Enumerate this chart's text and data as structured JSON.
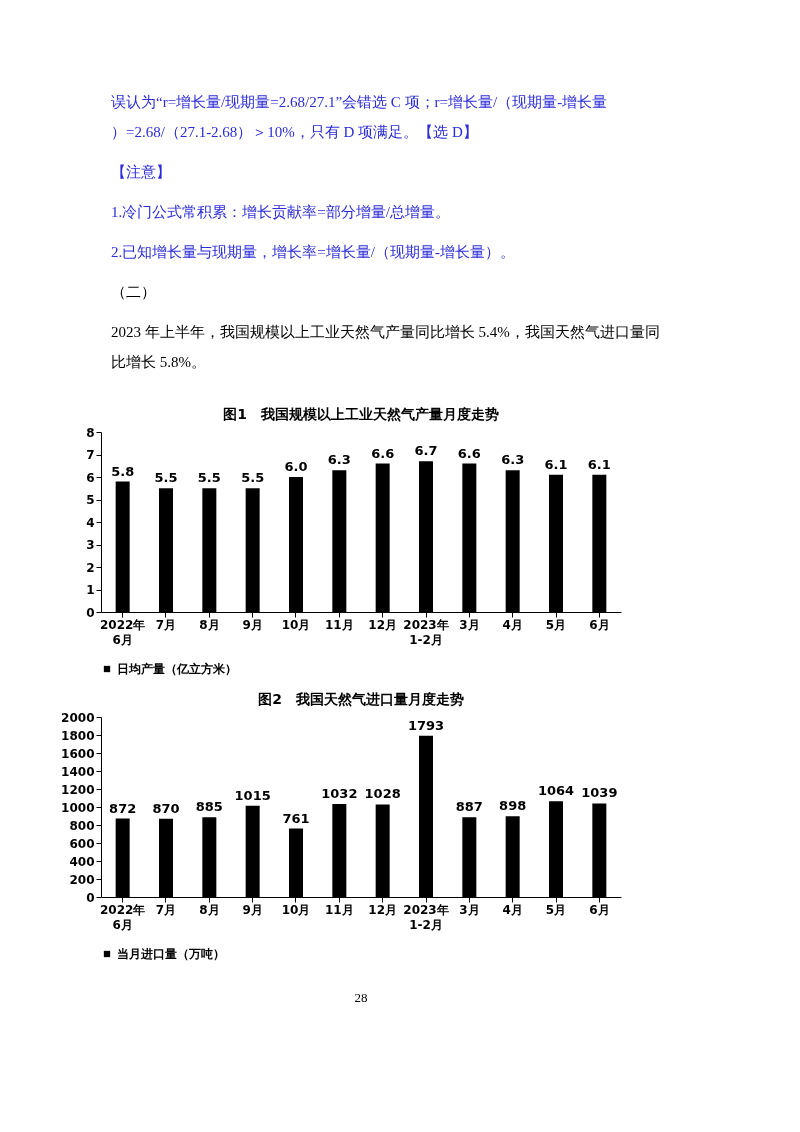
{
  "chart_data": [
    {
      "type": "bar",
      "title": "图1　我国规模以上工业天然气产量月度走势",
      "annotations": [
        "误认为“r=增长量/现期量=2.68/27.1”会错选 C 项；r=增长量/（现期量-增长量）=2.68/（27.1-2.68）＞10%，只有 D 项满足。【选 D】",
        "【注意】",
        "1.冷门公式常积累：增长贡献率=部分增量/总增量。",
        "2.已知增长量与现期量，增长率=增长量/（现期量-增长量）。",
        "（二）",
        "2023 年上半年，我国规模以上工业天然气产量同比增长 5.4%，我国天然气进口量同比增长 5.8%。"
      ],
      "categories": [
        "2022年\n6月",
        "7月",
        "8月",
        "9月",
        "10月",
        "11月",
        "12月",
        "2023年\n1-2月",
        "3月",
        "4月",
        "5月",
        "6月"
      ],
      "series": [
        {
          "name": "日均产量（亿立方米）",
          "color": "#000000",
          "values": [
            5.8,
            5.5,
            5.5,
            5.5,
            6.0,
            6.3,
            6.6,
            6.7,
            6.6,
            6.3,
            6.1,
            6.1
          ],
          "value_labels": [
            "5.8",
            "5.5",
            "5.5",
            "5.5",
            "6.0",
            "6.3",
            "6.6",
            "6.7",
            "6.6",
            "6.3",
            "6.1",
            "6.1"
          ]
        }
      ],
      "ylim": [
        0,
        8
      ],
      "yticks": [
        0,
        1,
        2,
        3,
        4,
        5,
        6,
        7,
        8
      ],
      "legend": "bottom"
    },
    {
      "type": "bar",
      "title": "图2　我国天然气进口量月度走势",
      "annotations": [
        "28"
      ],
      "categories": [
        "2022年\n6月",
        "7月",
        "8月",
        "9月",
        "10月",
        "11月",
        "12月",
        "2023年\n1-2月",
        "3月",
        "4月",
        "5月",
        "6月"
      ],
      "series": [
        {
          "name": "当月进口量（万吨）",
          "color": "#000000",
          "values": [
            872,
            870,
            885,
            1015,
            761,
            1032,
            1028,
            1793,
            887,
            898,
            1064,
            1039
          ]
        }
      ],
      "ylim": [
        0,
        2000
      ],
      "yticks": [
        0,
        200,
        400,
        600,
        800,
        1000,
        1200,
        1400,
        1600,
        1800,
        2000
      ],
      "data_labels": true,
      "legend": "bottom"
    }
  ]
}
